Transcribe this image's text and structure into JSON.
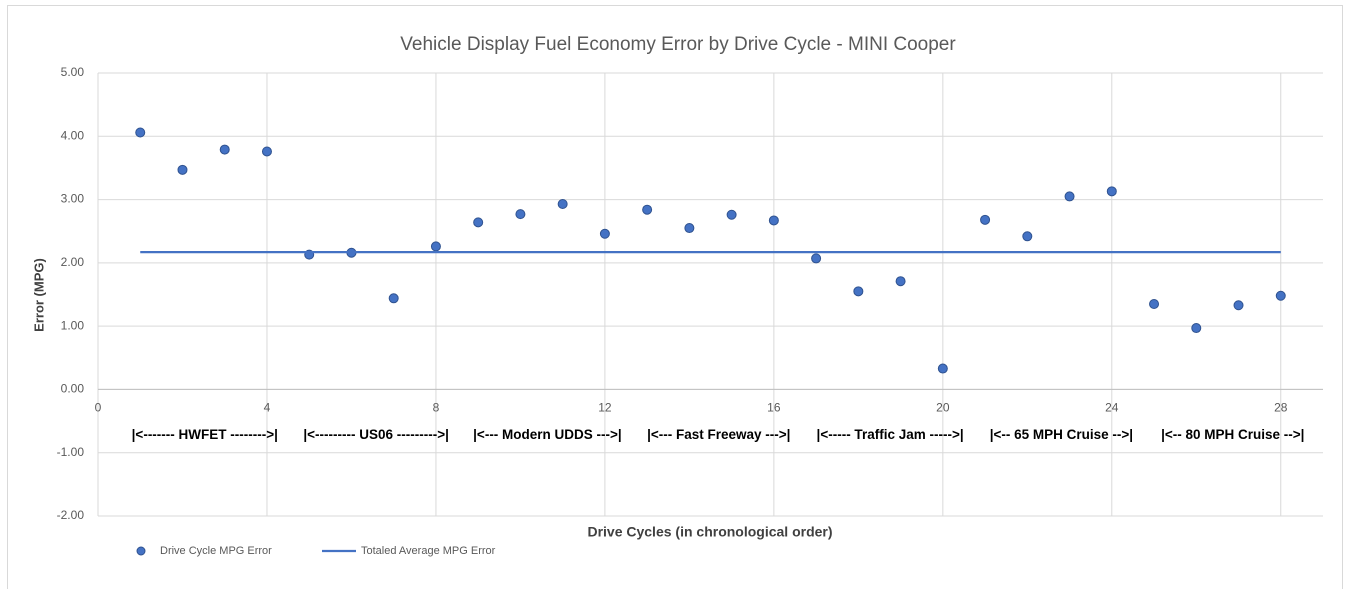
{
  "chart_data": {
    "type": "scatter",
    "title": "Vehicle Display Fuel Economy Error  by Drive Cycle - MINI Cooper",
    "xlabel": "Drive Cycles (in chronological order)",
    "ylabel": "Error (MPG)",
    "xlim": [
      0,
      29
    ],
    "ylim": [
      -2,
      5
    ],
    "xticks": [
      0,
      4,
      8,
      12,
      16,
      20,
      24,
      28
    ],
    "yticks": [
      {
        "value": -2,
        "label": "-2.00"
      },
      {
        "value": -1,
        "label": "-1.00"
      },
      {
        "value": 0,
        "label": "0.00"
      },
      {
        "value": 1,
        "label": "1.00"
      },
      {
        "value": 2,
        "label": "2.00"
      },
      {
        "value": 3,
        "label": "3.00"
      },
      {
        "value": 4,
        "label": "4.00"
      },
      {
        "value": 5,
        "label": "5.00"
      }
    ],
    "grid": true,
    "legend": "bottom-left",
    "annotations": [
      "|<------- HWFET -------->|",
      "|<--------- US06 --------->|",
      "|<--- Modern UDDS --->|",
      "|<--- Fast Freeway --->|",
      "|<----- Traffic Jam ----->|",
      "|<-- 65 MPH Cruise -->|",
      "|<-- 80 MPH Cruise -->|"
    ],
    "series": [
      {
        "name": "Drive Cycle MPG Error",
        "type": "scatter",
        "color": "#4472c4",
        "x": [
          1,
          2,
          3,
          4,
          5,
          6,
          7,
          8,
          9,
          10,
          11,
          12,
          13,
          14,
          15,
          16,
          17,
          18,
          19,
          20,
          21,
          22,
          23,
          24,
          25,
          26,
          27,
          28
        ],
        "values": [
          4.06,
          3.47,
          3.79,
          3.76,
          2.13,
          2.16,
          1.44,
          2.26,
          2.64,
          2.77,
          2.93,
          2.46,
          2.84,
          2.55,
          2.76,
          2.67,
          2.07,
          1.55,
          1.71,
          0.33,
          2.68,
          2.42,
          3.05,
          3.13,
          1.35,
          0.97,
          1.33,
          1.48
        ]
      },
      {
        "name": "Totaled Average MPG Error",
        "type": "line",
        "color": "#4472c4",
        "x": [
          1,
          28
        ],
        "values": [
          2.17,
          2.17
        ]
      }
    ]
  }
}
